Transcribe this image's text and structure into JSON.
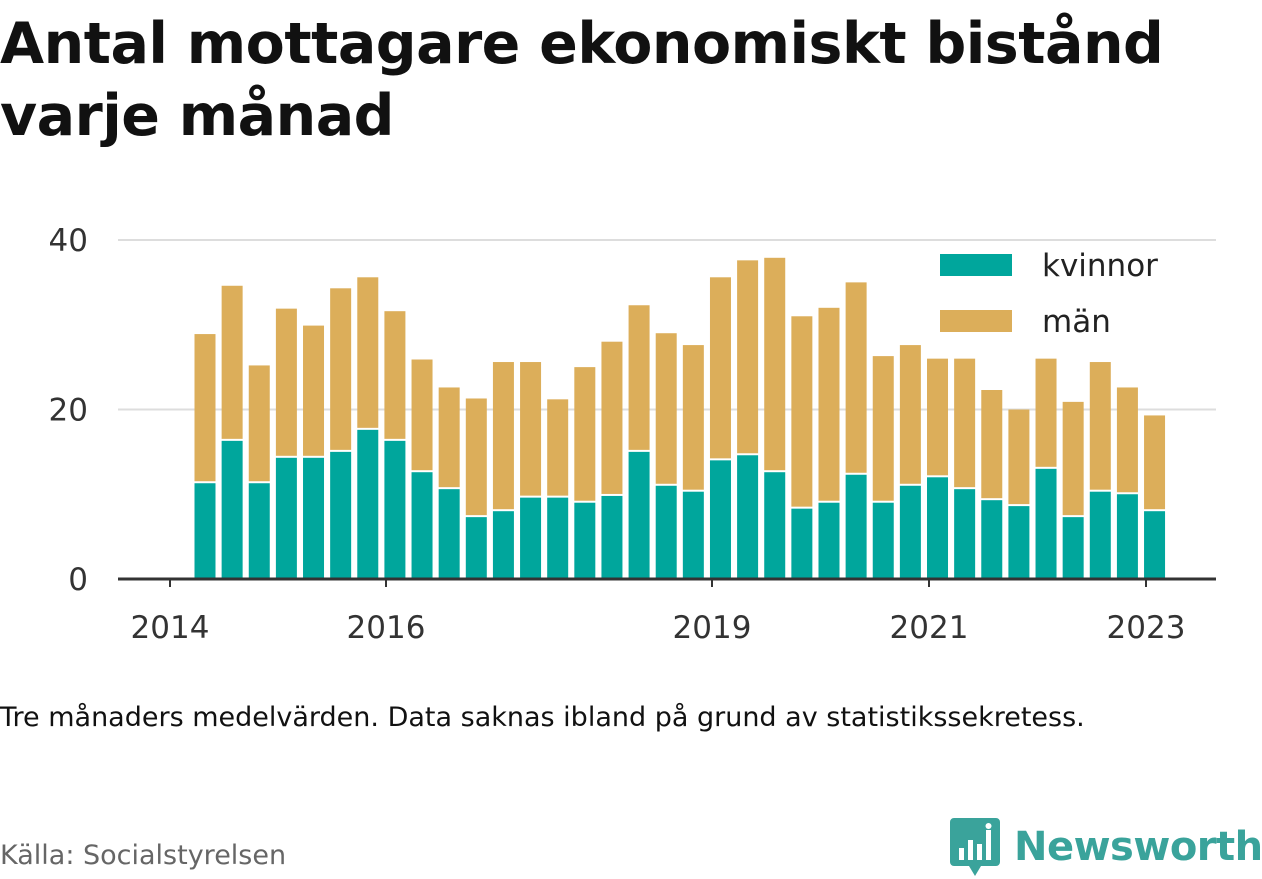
{
  "title": "Antal mottagare ekonomiskt bistånd varje månad",
  "note": "Tre månaders medelvärden. Data saknas ibland på grund av statistikssekretess.",
  "source": "Källa: Socialstyrelsen",
  "brand": "Newsworthy",
  "colors": {
    "kvinnor": "#00a69c",
    "man": "#dcae5a",
    "grid": "#dddddd",
    "axis": "#333333",
    "brand": "#3aa39b"
  },
  "chart_data": {
    "type": "bar",
    "stacked": true,
    "x_ticks": [
      "2014",
      "2016",
      "2019",
      "2021",
      "2023"
    ],
    "y_ticks": [
      "0",
      "20",
      "40"
    ],
    "ylim": [
      0,
      40
    ],
    "grid": true,
    "legend_position": "top-right",
    "series": [
      {
        "name": "kvinnor",
        "values": [
          11.3,
          16.3,
          11.3,
          14.3,
          14.3,
          15.0,
          17.6,
          16.3,
          12.6,
          10.6,
          7.3,
          8.0,
          9.6,
          9.6,
          9.0,
          9.8,
          15.0,
          11.0,
          10.3,
          14.0,
          14.6,
          12.6,
          8.3,
          9.0,
          12.3,
          9.0,
          11.0,
          12.0,
          10.6,
          9.3,
          8.6,
          13.0,
          7.3,
          10.3,
          10.0,
          8.0
        ]
      },
      {
        "name": "män",
        "values": [
          17.6,
          18.3,
          13.9,
          17.6,
          15.6,
          19.3,
          18.0,
          15.3,
          13.3,
          12.0,
          14.0,
          17.6,
          16.0,
          11.6,
          16.0,
          18.2,
          17.3,
          18.0,
          17.3,
          21.6,
          23.0,
          25.3,
          22.7,
          23.0,
          22.7,
          17.3,
          16.6,
          14.0,
          15.4,
          13.0,
          11.4,
          13.0,
          13.6,
          15.3,
          12.6,
          11.3
        ]
      }
    ]
  }
}
